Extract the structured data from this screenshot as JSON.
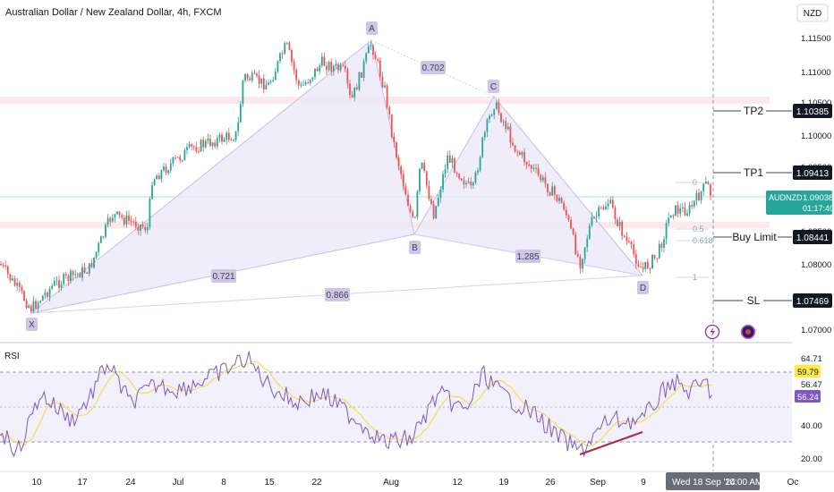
{
  "header": {
    "title": "Australian Dollar / New Zealand Dollar, 4h, FXCM",
    "currency_button": "NZD"
  },
  "price_scale": {
    "ticks": [
      "1.11500",
      "1.11000",
      "1.10500",
      "1.10000",
      "1.09500",
      "1.08500",
      "1.08000",
      "1.07000"
    ],
    "current_symbol": "AUDNZD",
    "current_price": "1.09038",
    "countdown": "01:17:40"
  },
  "levels": {
    "tp2": {
      "label": "TP2",
      "price": "1.10385"
    },
    "tp1": {
      "label": "TP1",
      "price": "1.09413"
    },
    "buy_limit": {
      "label": "Buy Limit",
      "price": "1.08441"
    },
    "sl": {
      "label": "SL",
      "price": "1.07469"
    }
  },
  "pattern": {
    "points": {
      "x": "X",
      "a": "A",
      "b": "B",
      "c": "C",
      "d": "D"
    },
    "ratios": {
      "xb": "0.721",
      "ab": "0.702",
      "bd": "1.285",
      "xd": "0.866"
    },
    "fib": {
      "zero": "0",
      "half": "0.5",
      "golden": "0.618",
      "one": "1"
    }
  },
  "rsi": {
    "label": "RSI",
    "ticks": [
      "64.71",
      "56.47",
      "40.00",
      "20.00"
    ],
    "value1": "59.79",
    "value2": "56.24"
  },
  "time_axis": {
    "labels": [
      "10",
      "17",
      "24",
      "Jul",
      "8",
      "15",
      "22",
      "Aug",
      "12",
      "19",
      "26",
      "Sep",
      "9",
      "Oc"
    ],
    "crosshair": "Wed 18 Sep '24",
    "crosshair_time": "10:00 AM"
  },
  "colors": {
    "up": "#26a69a",
    "down": "#ef5350",
    "pattern_fill": "#e8e6f7",
    "rsi_line": "#7e57c2",
    "rsi_ma": "#f5dd2e",
    "label_bg": "#d1c4e9"
  },
  "icons": {
    "alert": "lightning-icon",
    "flag": "australia-flag-icon"
  }
}
